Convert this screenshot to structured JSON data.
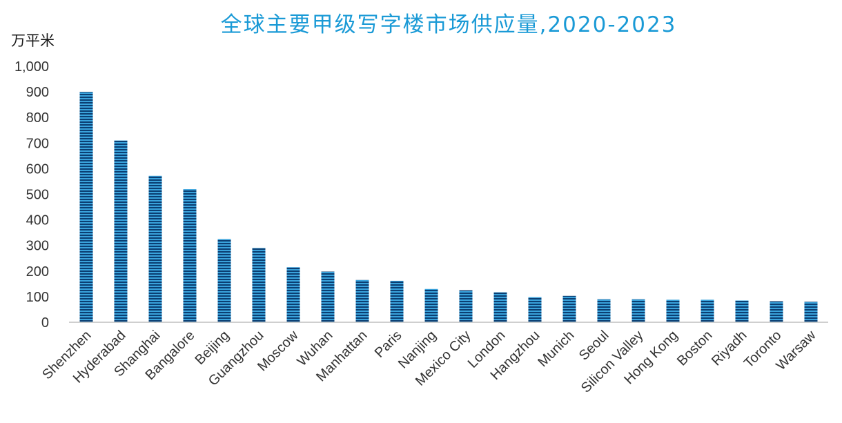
{
  "chart_data": {
    "type": "bar",
    "title": "全球主要甲级写字楼市场供应量,2020-2023",
    "ylabel": "万平米",
    "xlabel": "",
    "ylim": [
      0,
      1000
    ],
    "yticks": [
      0,
      100,
      200,
      300,
      400,
      500,
      600,
      700,
      800,
      900,
      1000
    ],
    "ytick_labels": [
      "0",
      "100",
      "200",
      "300",
      "400",
      "500",
      "600",
      "700",
      "800",
      "900",
      "1,000"
    ],
    "categories": [
      "Shenzhen",
      "Hyderabad",
      "Shanghai",
      "Bangalore",
      "Beijing",
      "Guangzhou",
      "Moscow",
      "Wuhan",
      "Manhattan",
      "Paris",
      "Nanjing",
      "Mexico City",
      "London",
      "Hangzhou",
      "Munich",
      "Seoul",
      "Silicon Valley",
      "Hong Kong",
      "Boston",
      "Riyadh",
      "Toronto",
      "Warsaw"
    ],
    "values": [
      900,
      710,
      572,
      520,
      325,
      290,
      215,
      198,
      165,
      162,
      130,
      125,
      117,
      98,
      103,
      90,
      90,
      88,
      88,
      85,
      82,
      80
    ],
    "grid": false,
    "legend": "none",
    "colors": {
      "title": "#1a9ad6",
      "bar_dark": "#0b3f73",
      "bar_light": "#3aa3dc",
      "axis": "#bfbfbf"
    }
  }
}
